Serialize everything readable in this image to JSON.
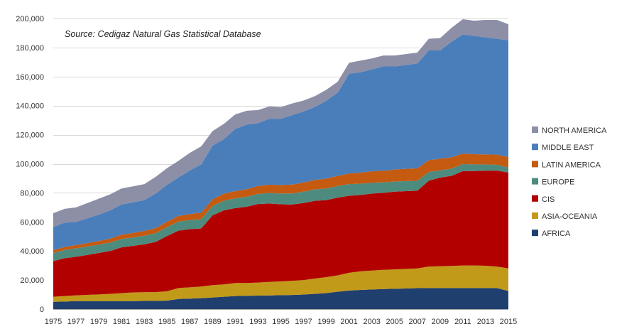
{
  "chart_data": {
    "type": "area",
    "stacked": true,
    "annotation": "Source: Cedigaz Natural Gas Statistical Database",
    "x": [
      1975,
      1976,
      1977,
      1978,
      1979,
      1980,
      1981,
      1982,
      1983,
      1984,
      1985,
      1986,
      1987,
      1988,
      1989,
      1990,
      1991,
      1992,
      1993,
      1994,
      1995,
      1996,
      1997,
      1998,
      1999,
      2000,
      2001,
      2002,
      2003,
      2004,
      2005,
      2006,
      2007,
      2008,
      2009,
      2010,
      2011,
      2012,
      2013,
      2014,
      2015
    ],
    "x_tick_labels": [
      "1975",
      "1977",
      "1979",
      "1981",
      "1983",
      "1985",
      "1987",
      "1989",
      "1991",
      "1993",
      "1995",
      "1997",
      "1999",
      "2001",
      "2003",
      "2005",
      "2007",
      "2009",
      "2011",
      "2013",
      "2015"
    ],
    "y_tick_labels": [
      "0",
      "20,000",
      "40,000",
      "60,000",
      "80,000",
      "100,000",
      "120,000",
      "140,000",
      "160,000",
      "180,000",
      "200,000"
    ],
    "ylim": [
      0,
      200000
    ],
    "grid": true,
    "legend_position": "right",
    "series": [
      {
        "name": "AFRICA",
        "color": "#1f3f6e",
        "values": [
          5000,
          5200,
          5500,
          5500,
          5500,
          5500,
          5500,
          5500,
          5600,
          5700,
          5800,
          7000,
          7200,
          7500,
          8000,
          8500,
          9000,
          9200,
          9300,
          9400,
          9600,
          9700,
          10000,
          10500,
          11000,
          12000,
          12800,
          13200,
          13500,
          13800,
          14000,
          14200,
          14400,
          14500,
          14500,
          14500,
          14500,
          14500,
          14500,
          14500,
          12500
        ]
      },
      {
        "name": "ASIA-OCEANIA",
        "color": "#c29a1a",
        "values": [
          3500,
          3800,
          4000,
          4300,
          4600,
          5000,
          5500,
          6000,
          6000,
          6000,
          6500,
          7500,
          7800,
          8000,
          8500,
          8500,
          9000,
          8800,
          9000,
          9300,
          9500,
          9800,
          10000,
          10500,
          11000,
          11200,
          12200,
          12800,
          13000,
          13200,
          13300,
          13500,
          13600,
          14800,
          15000,
          15200,
          15500,
          15500,
          15300,
          14800,
          15500
        ]
      },
      {
        "name": "CIS",
        "color": "#b20000",
        "values": [
          24500,
          26000,
          26500,
          27500,
          28500,
          29500,
          31500,
          32000,
          33000,
          34500,
          38000,
          39500,
          40000,
          40000,
          48000,
          51000,
          51500,
          52500,
          54000,
          54000,
          53000,
          52500,
          53000,
          53500,
          53000,
          53500,
          53000,
          52500,
          53000,
          53000,
          53500,
          53500,
          53500,
          59000,
          61000,
          62000,
          65000,
          65000,
          65500,
          66000,
          66000
        ]
      },
      {
        "name": "EUROPE",
        "color": "#4e8b7f",
        "values": [
          5500,
          5700,
          5800,
          5800,
          5800,
          5800,
          5800,
          5800,
          5900,
          6000,
          6100,
          6200,
          6300,
          6400,
          6500,
          6600,
          6700,
          6800,
          7000,
          7200,
          7400,
          7600,
          7800,
          7900,
          8000,
          8000,
          8000,
          7800,
          7500,
          7200,
          7000,
          6900,
          6800,
          6000,
          5000,
          5000,
          4800,
          4600,
          4300,
          4000,
          3500
        ]
      },
      {
        "name": "LATIN AMERICA",
        "color": "#c55a11",
        "values": [
          2000,
          2100,
          2200,
          2300,
          2500,
          2700,
          2900,
          3100,
          3300,
          3500,
          3700,
          3900,
          4100,
          4400,
          4600,
          4800,
          5000,
          5200,
          5500,
          5700,
          5900,
          6100,
          6300,
          6500,
          6800,
          7000,
          7300,
          7600,
          7800,
          8000,
          8200,
          8400,
          8600,
          8200,
          8000,
          7700,
          7300,
          7000,
          6800,
          7000,
          7000
        ]
      },
      {
        "name": "MIDDLE EAST",
        "color": "#4a7ebb",
        "values": [
          16000,
          16700,
          16000,
          17100,
          18100,
          19500,
          20800,
          21100,
          21200,
          23800,
          25400,
          26400,
          30100,
          33200,
          36900,
          37600,
          42800,
          44500,
          43200,
          45400,
          45600,
          47800,
          48900,
          50200,
          53600,
          57300,
          68700,
          69100,
          70200,
          71800,
          71000,
          71500,
          72100,
          75500,
          74500,
          79600,
          81900,
          81400,
          80600,
          79700,
          80500
        ]
      },
      {
        "name": "NORTH AMERICA",
        "color": "#8c8fa6",
        "values": [
          9500,
          9500,
          10000,
          10500,
          11000,
          11000,
          11000,
          11000,
          11000,
          11500,
          11500,
          11500,
          12000,
          12500,
          10000,
          10500,
          10000,
          9500,
          9000,
          8500,
          8000,
          8000,
          7500,
          7500,
          7500,
          7500,
          7500,
          8000,
          7500,
          7500,
          7500,
          7500,
          7500,
          8000,
          8500,
          9500,
          10500,
          10500,
          12000,
          13000,
          11000
        ]
      }
    ]
  }
}
